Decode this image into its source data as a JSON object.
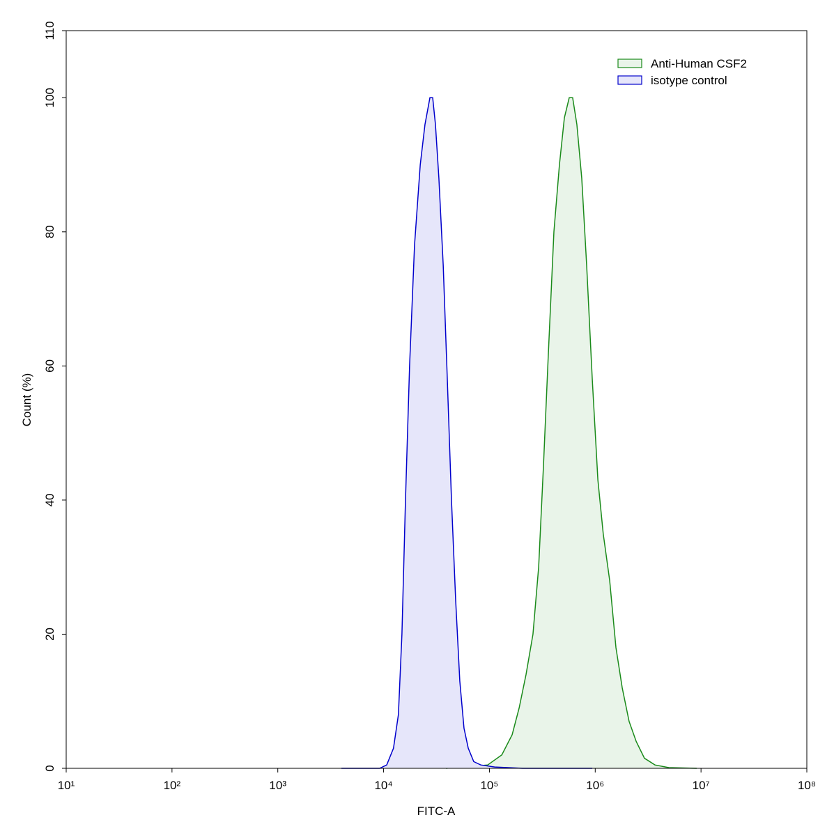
{
  "chart_data": {
    "type": "histogram-overlay",
    "xlabel": "FITC-A",
    "ylabel": "Count  (%)",
    "xscale": "log",
    "xlim": [
      10,
      100000000
    ],
    "xticks": [
      {
        "value": 10,
        "label": "10¹"
      },
      {
        "value": 100,
        "label": "10²"
      },
      {
        "value": 1000,
        "label": "10³"
      },
      {
        "value": 10000,
        "label": "10⁴"
      },
      {
        "value": 100000,
        "label": "10⁵"
      },
      {
        "value": 1000000,
        "label": "10⁶"
      },
      {
        "value": 10000000,
        "label": "10⁷"
      },
      {
        "value": 100000000,
        "label": "10⁸"
      }
    ],
    "ylim": [
      0,
      110
    ],
    "yticks": [
      0,
      20,
      40,
      60,
      80,
      100,
      110
    ],
    "legend": "upper right",
    "series": [
      {
        "name": "Anti-Human CSF2",
        "color": "#1a8a1a",
        "fill_color": "#e9f4e9",
        "x": [
          38800,
          96400,
          131000,
          164000,
          191000,
          222000,
          258000,
          292000,
          324000,
          361000,
          407000,
          459000,
          511000,
          568000,
          612000,
          671000,
          746000,
          830000,
          938000,
          1060000,
          1190000,
          1370000,
          1570000,
          1800000,
          2090000,
          2440000,
          2920000,
          3670000,
          4960000,
          9100000
        ],
        "values": [
          0,
          0.5,
          2,
          5,
          9,
          14,
          20,
          30,
          45,
          62,
          80,
          90,
          97,
          100,
          100,
          96,
          88,
          75,
          58,
          43,
          35,
          28,
          18,
          12,
          7,
          4,
          1.5,
          0.5,
          0.1,
          0
        ]
      },
      {
        "name": "isotype control",
        "color": "#0000cc",
        "fill_color": "#e6e6fa",
        "x": [
          3990,
          9180,
          10700,
          12400,
          13800,
          14900,
          16100,
          17600,
          19600,
          22200,
          24600,
          27400,
          29100,
          30900,
          33300,
          36600,
          40000,
          43800,
          48000,
          52500,
          57500,
          63100,
          71100,
          82800,
          112000,
          206000,
          938000
        ],
        "values": [
          0,
          0,
          0.5,
          3,
          8,
          20,
          40,
          60,
          78,
          90,
          96,
          100,
          100,
          96,
          88,
          75,
          58,
          40,
          25,
          13,
          6,
          3,
          1,
          0.5,
          0.2,
          0,
          0
        ]
      }
    ]
  }
}
